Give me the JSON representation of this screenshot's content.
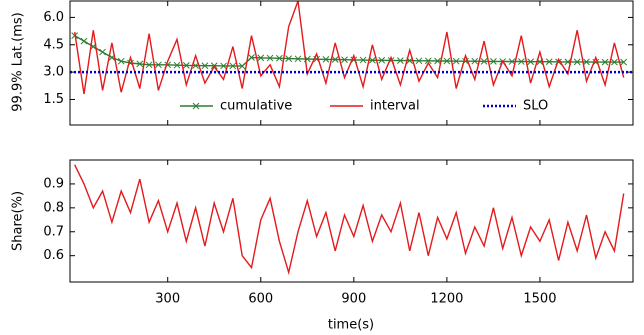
{
  "chart_data": [
    {
      "type": "line",
      "ylabel": "99.9% Lat.(ms)",
      "x": [
        0,
        30,
        60,
        90,
        120,
        150,
        180,
        210,
        240,
        270,
        300,
        330,
        360,
        390,
        420,
        450,
        480,
        510,
        540,
        570,
        600,
        630,
        660,
        690,
        720,
        750,
        780,
        810,
        840,
        870,
        900,
        930,
        960,
        990,
        1020,
        1050,
        1080,
        1110,
        1140,
        1170,
        1200,
        1230,
        1260,
        1290,
        1320,
        1350,
        1380,
        1410,
        1440,
        1470,
        1500,
        1530,
        1560,
        1590,
        1620,
        1650,
        1680,
        1710,
        1740,
        1770
      ],
      "xlim": [
        -15,
        1800
      ],
      "xticks": [
        300,
        600,
        900,
        1200,
        1500
      ],
      "ylim": [
        0.1,
        6.9
      ],
      "yticks": [
        {
          "value": 1.5,
          "label": "1.5"
        },
        {
          "value": 3.0,
          "label": "3.0"
        },
        {
          "value": 4.5,
          "label": "4.5"
        },
        {
          "value": 6.0,
          "label": "6.0"
        }
      ],
      "series": [
        {
          "name": "cumulative",
          "color": "#2e7d32",
          "marker": "x",
          "values": [
            5.0,
            4.7,
            4.4,
            4.1,
            3.8,
            3.6,
            3.5,
            3.45,
            3.4,
            3.4,
            3.4,
            3.38,
            3.37,
            3.36,
            3.35,
            3.35,
            3.34,
            3.34,
            3.33,
            3.8,
            3.78,
            3.77,
            3.76,
            3.74,
            3.73,
            3.72,
            3.71,
            3.7,
            3.69,
            3.68,
            3.67,
            3.66,
            3.65,
            3.65,
            3.64,
            3.63,
            3.63,
            3.62,
            3.62,
            3.61,
            3.61,
            3.6,
            3.6,
            3.6,
            3.59,
            3.59,
            3.58,
            3.58,
            3.58,
            3.57,
            3.57,
            3.57,
            3.56,
            3.56,
            3.56,
            3.56,
            3.55,
            3.55,
            3.55,
            3.55
          ]
        },
        {
          "name": "interval",
          "color": "#e41a1c",
          "values": [
            5.2,
            1.8,
            5.3,
            2.0,
            4.6,
            1.9,
            3.8,
            2.1,
            5.1,
            2.0,
            3.6,
            4.8,
            2.3,
            3.9,
            2.4,
            3.3,
            2.6,
            4.4,
            2.1,
            5.0,
            2.8,
            3.4,
            2.2,
            5.5,
            6.9,
            2.9,
            4.0,
            2.4,
            4.6,
            2.7,
            3.9,
            2.2,
            4.5,
            2.6,
            3.8,
            2.3,
            4.2,
            2.5,
            3.5,
            2.7,
            5.2,
            2.1,
            3.9,
            2.6,
            4.7,
            2.3,
            3.6,
            2.8,
            5.0,
            2.4,
            4.1,
            2.2,
            3.7,
            2.9,
            5.3,
            2.5,
            3.8,
            2.3,
            4.6,
            2.7
          ]
        },
        {
          "name": "SLO",
          "color": "#0000cc",
          "dash": "dotted",
          "hline": 3.0
        }
      ]
    },
    {
      "type": "line",
      "ylabel": "Share(%)",
      "xlabel": "time(s)",
      "x": [
        0,
        30,
        60,
        90,
        120,
        150,
        180,
        210,
        240,
        270,
        300,
        330,
        360,
        390,
        420,
        450,
        480,
        510,
        540,
        570,
        600,
        630,
        660,
        690,
        720,
        750,
        780,
        810,
        840,
        870,
        900,
        930,
        960,
        990,
        1020,
        1050,
        1080,
        1110,
        1140,
        1170,
        1200,
        1230,
        1260,
        1290,
        1320,
        1350,
        1380,
        1410,
        1440,
        1470,
        1500,
        1530,
        1560,
        1590,
        1620,
        1650,
        1680,
        1710,
        1740,
        1770
      ],
      "xlim": [
        -15,
        1800
      ],
      "xticks": [
        300,
        600,
        900,
        1200,
        1500
      ],
      "ylim": [
        0.49,
        1.0
      ],
      "yticks": [
        0.6,
        0.7,
        0.8,
        0.9
      ],
      "series": [
        {
          "name": "share",
          "color": "#e41a1c",
          "values": [
            0.98,
            0.9,
            0.8,
            0.87,
            0.74,
            0.87,
            0.78,
            0.92,
            0.74,
            0.83,
            0.7,
            0.82,
            0.66,
            0.8,
            0.64,
            0.82,
            0.7,
            0.84,
            0.6,
            0.55,
            0.75,
            0.84,
            0.66,
            0.53,
            0.7,
            0.83,
            0.68,
            0.78,
            0.62,
            0.77,
            0.68,
            0.81,
            0.66,
            0.77,
            0.7,
            0.82,
            0.62,
            0.78,
            0.6,
            0.76,
            0.67,
            0.78,
            0.61,
            0.72,
            0.64,
            0.8,
            0.63,
            0.76,
            0.6,
            0.72,
            0.66,
            0.75,
            0.58,
            0.74,
            0.62,
            0.77,
            0.59,
            0.7,
            0.62,
            0.86
          ]
        }
      ]
    }
  ]
}
